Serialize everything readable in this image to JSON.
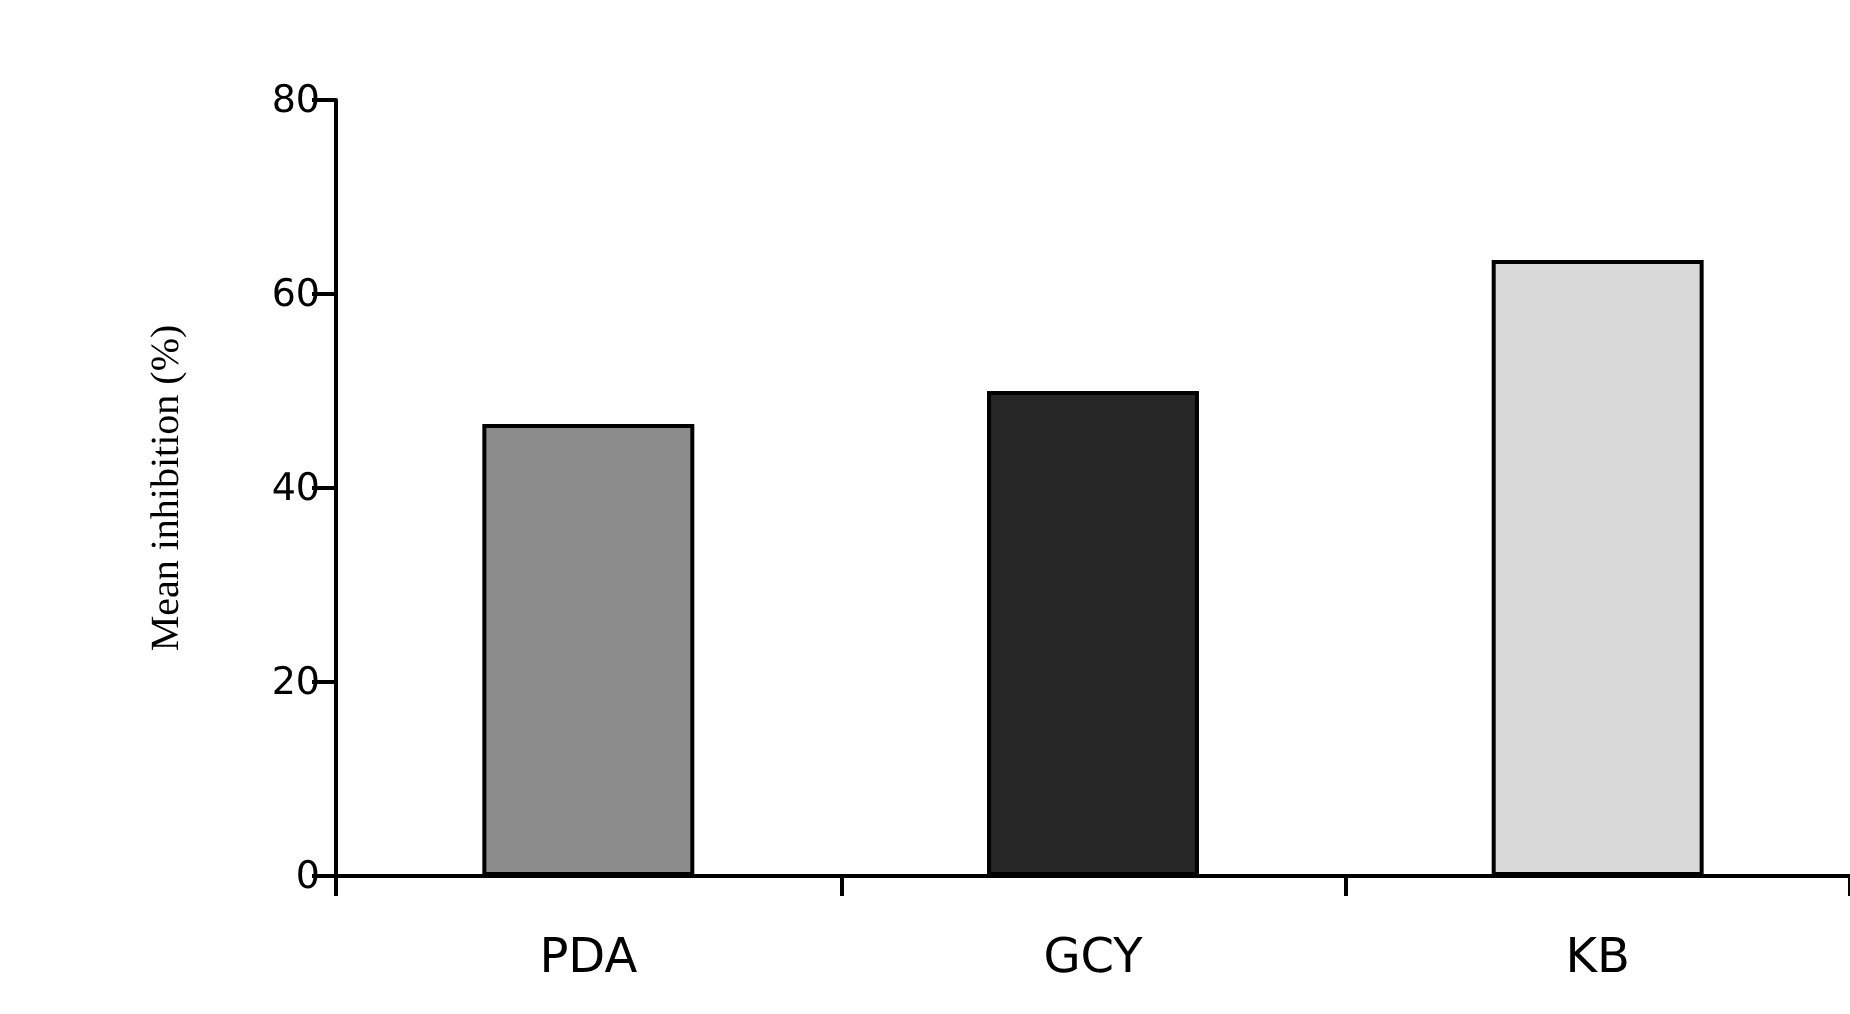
{
  "chart_data": {
    "type": "bar",
    "ylabel": "Mean inhibition (%)",
    "categories": [
      "PDA",
      "GCY",
      "KB"
    ],
    "values": [
      46.6,
      50,
      63.5
    ],
    "colors": [
      "#8c8c8c",
      "#262626",
      "#d9d9d9"
    ],
    "ylim": [
      0,
      80
    ],
    "yticks": [
      0,
      20,
      40,
      60,
      80
    ]
  }
}
